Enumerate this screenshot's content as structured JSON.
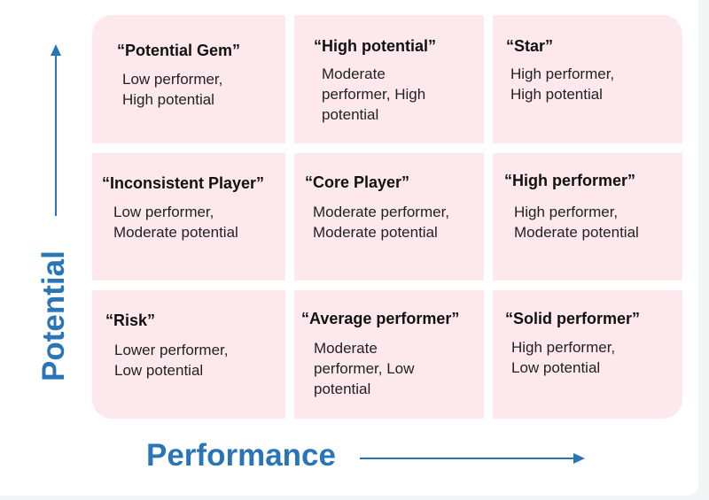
{
  "axes": {
    "x_label": "Performance",
    "y_label": "Potential",
    "accent_color": "#2a74b8"
  },
  "grid": {
    "cell_color": "#fde9ec",
    "cells": [
      {
        "title": "“Potential Gem”",
        "lines": [
          "Low performer,",
          "High potential"
        ]
      },
      {
        "title": "“High potential”",
        "lines": [
          "Moderate",
          "performer, High",
          "potential"
        ]
      },
      {
        "title": "“Star”",
        "lines": [
          "High performer,",
          "High potential"
        ]
      },
      {
        "title": "“Inconsistent Player”",
        "lines": [
          "Low performer,",
          "Moderate potential"
        ]
      },
      {
        "title": "“Core Player”",
        "lines": [
          "Moderate performer,",
          "Moderate potential"
        ]
      },
      {
        "title": "“High performer”",
        "lines": [
          "High performer,",
          "Moderate potential"
        ]
      },
      {
        "title": "“Risk”",
        "lines": [
          "Lower performer,",
          "Low potential"
        ]
      },
      {
        "title": "“Average performer”",
        "lines": [
          "Moderate",
          "performer, Low",
          "potential"
        ]
      },
      {
        "title": "“Solid performer”",
        "lines": [
          "High performer,",
          "Low potential"
        ]
      }
    ]
  }
}
